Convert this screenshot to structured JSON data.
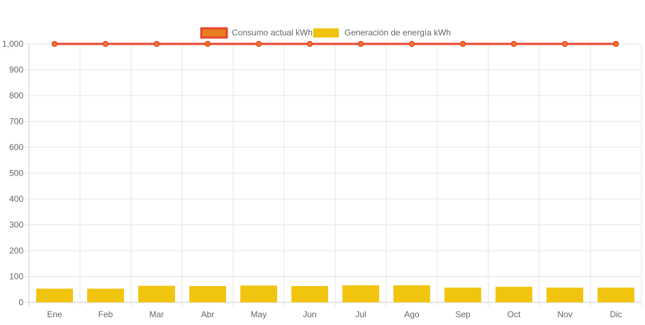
{
  "chart_data": {
    "type": "bar",
    "categories": [
      "Ene",
      "Feb",
      "Mar",
      "Abr",
      "May",
      "Jun",
      "Jul",
      "Ago",
      "Sep",
      "Oct",
      "Nov",
      "Dic"
    ],
    "series": [
      {
        "name": "Consumo actual kWh",
        "type": "line",
        "values": [
          1000,
          1000,
          1000,
          1000,
          1000,
          1000,
          1000,
          1000,
          1000,
          1000,
          1000,
          1000
        ],
        "color": "#e8452c",
        "fill_color": "#e67e22"
      },
      {
        "name": "Generación de energía kWh",
        "type": "bar",
        "values": [
          53,
          53,
          64,
          63,
          65,
          63,
          66,
          66,
          57,
          60,
          57,
          57
        ],
        "color": "#f1c40f"
      }
    ],
    "y_ticks": [
      "0",
      "100",
      "200",
      "300",
      "400",
      "500",
      "600",
      "700",
      "800",
      "900",
      "1,000"
    ],
    "ylim": [
      0,
      1000
    ],
    "grid": true,
    "legend_position": "top-center"
  }
}
